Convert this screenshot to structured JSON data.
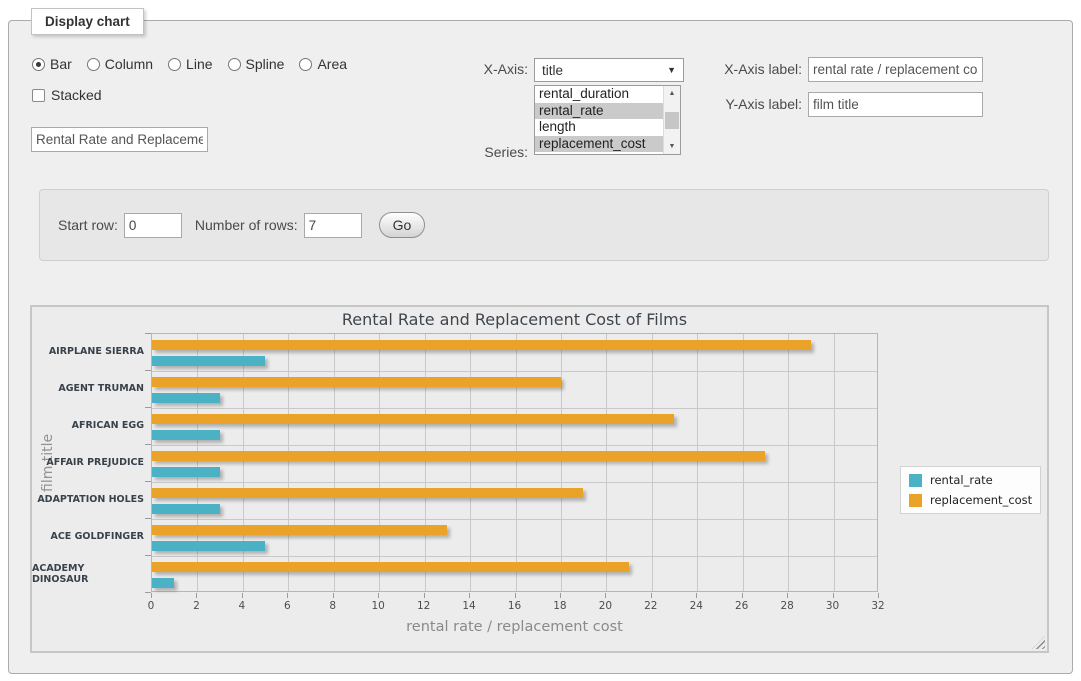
{
  "panel_title": "Display chart",
  "chart_types": {
    "options": [
      {
        "label": "Bar",
        "selected": true
      },
      {
        "label": "Column",
        "selected": false
      },
      {
        "label": "Line",
        "selected": false
      },
      {
        "label": "Spline",
        "selected": false
      },
      {
        "label": "Area",
        "selected": false
      }
    ]
  },
  "stacked": {
    "label": "Stacked",
    "checked": false
  },
  "title_input": {
    "value": "Rental Rate and Replacement Cost of Films"
  },
  "x_axis_select": {
    "label": "X-Axis:",
    "value": "title"
  },
  "series_select": {
    "label": "Series:",
    "options": [
      {
        "label": "rental_duration",
        "selected": false
      },
      {
        "label": "rental_rate",
        "selected": true
      },
      {
        "label": "length",
        "selected": false
      },
      {
        "label": "replacement_cost",
        "selected": true
      }
    ]
  },
  "x_axis_label_field": {
    "label": "X-Axis label:",
    "value": "rental rate / replacement cost"
  },
  "y_axis_label_field": {
    "label": "Y-Axis label:",
    "value": "film title"
  },
  "row_controls": {
    "start_row_label": "Start row:",
    "start_row_value": "0",
    "number_of_rows_label": "Number of rows:",
    "number_of_rows_value": "7",
    "go_label": "Go"
  },
  "chart_data": {
    "type": "bar",
    "orientation": "horizontal",
    "title": "Rental Rate and Replacement Cost of Films",
    "categories": [
      "AIRPLANE SIERRA",
      "AGENT TRUMAN",
      "AFRICAN EGG",
      "AFFAIR PREJUDICE",
      "ADAPTATION HOLES",
      "ACE GOLDFINGER",
      "ACADEMY DINOSAUR"
    ],
    "series": [
      {
        "name": "rental_rate",
        "color": "#4bb2c5",
        "values": [
          4.99,
          2.99,
          2.99,
          2.99,
          2.99,
          4.99,
          0.99
        ]
      },
      {
        "name": "replacement_cost",
        "color": "#eaa228",
        "values": [
          28.99,
          17.99,
          22.99,
          26.99,
          18.99,
          12.99,
          20.99
        ]
      }
    ],
    "xlabel": "rental rate / replacement cost",
    "ylabel": "film title",
    "xlim": [
      0,
      32
    ],
    "xticks": [
      0,
      2,
      4,
      6,
      8,
      10,
      12,
      14,
      16,
      18,
      20,
      22,
      24,
      26,
      28,
      30,
      32
    ],
    "grid": true,
    "legend_position": "right"
  }
}
